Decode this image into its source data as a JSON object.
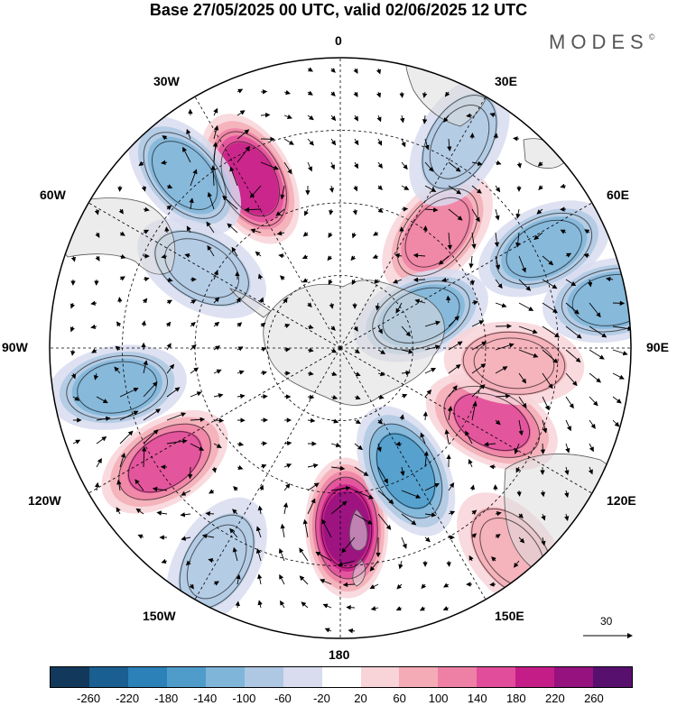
{
  "title": "Base 27/05/2025 00 UTC, valid 02/06/2025 12 UTC",
  "logo": "MODES",
  "logo_mark": "©",
  "longitude_labels": {
    "0": "0",
    "30E": "30E",
    "60E": "60E",
    "90E": "90E",
    "120E": "120E",
    "150E": "150E",
    "180": "180",
    "150W": "150W",
    "120W": "120W",
    "90W": "90W",
    "60W": "60W",
    "30W": "30W"
  },
  "reference_vector": "30",
  "colorbar": {
    "colors": [
      "#12395c",
      "#1a5f91",
      "#2b81b8",
      "#4f9ccb",
      "#7fb5d9",
      "#aec8e3",
      "#d8dcee",
      "#ffffff",
      "#f8d3d8",
      "#f4abb6",
      "#ee80a5",
      "#e14d9b",
      "#c51d88",
      "#95127f",
      "#57106e"
    ],
    "ticks": [
      "-260",
      "-220",
      "-180",
      "-140",
      "-100",
      "-60",
      "-20",
      "20",
      "60",
      "100",
      "140",
      "180",
      "220",
      "260"
    ]
  },
  "map": {
    "projection": "south-polar-stereographic",
    "field": "geopotential-height-anomaly",
    "anomalies": [
      {
        "lon": 178,
        "colat": 0.62,
        "value": 230
      },
      {
        "lon": 152,
        "colat": 0.48,
        "value": -150
      },
      {
        "lon": 116,
        "colat": 0.58,
        "value": 140
      },
      {
        "lon": 80,
        "colat": 0.95,
        "value": -120
      },
      {
        "lon": 64,
        "colat": 0.78,
        "value": -100
      },
      {
        "lon": -123,
        "colat": 0.72,
        "value": 170
      },
      {
        "lon": -100,
        "colat": 0.78,
        "value": -120
      },
      {
        "lon": -28,
        "colat": 0.66,
        "value": 200
      },
      {
        "lon": -42,
        "colat": 0.8,
        "value": -100
      },
      {
        "lon": 40,
        "colat": 0.52,
        "value": 120
      },
      {
        "lon": 68,
        "colat": 0.3,
        "value": -120
      },
      {
        "lon": 30,
        "colat": 0.82,
        "value": -80
      },
      {
        "lon": 95,
        "colat": 0.6,
        "value": 90
      },
      {
        "lon": 140,
        "colat": 0.92,
        "value": 60
      },
      {
        "lon": -150,
        "colat": 0.85,
        "value": -80
      },
      {
        "lon": -60,
        "colat": 0.55,
        "value": -60
      }
    ]
  }
}
